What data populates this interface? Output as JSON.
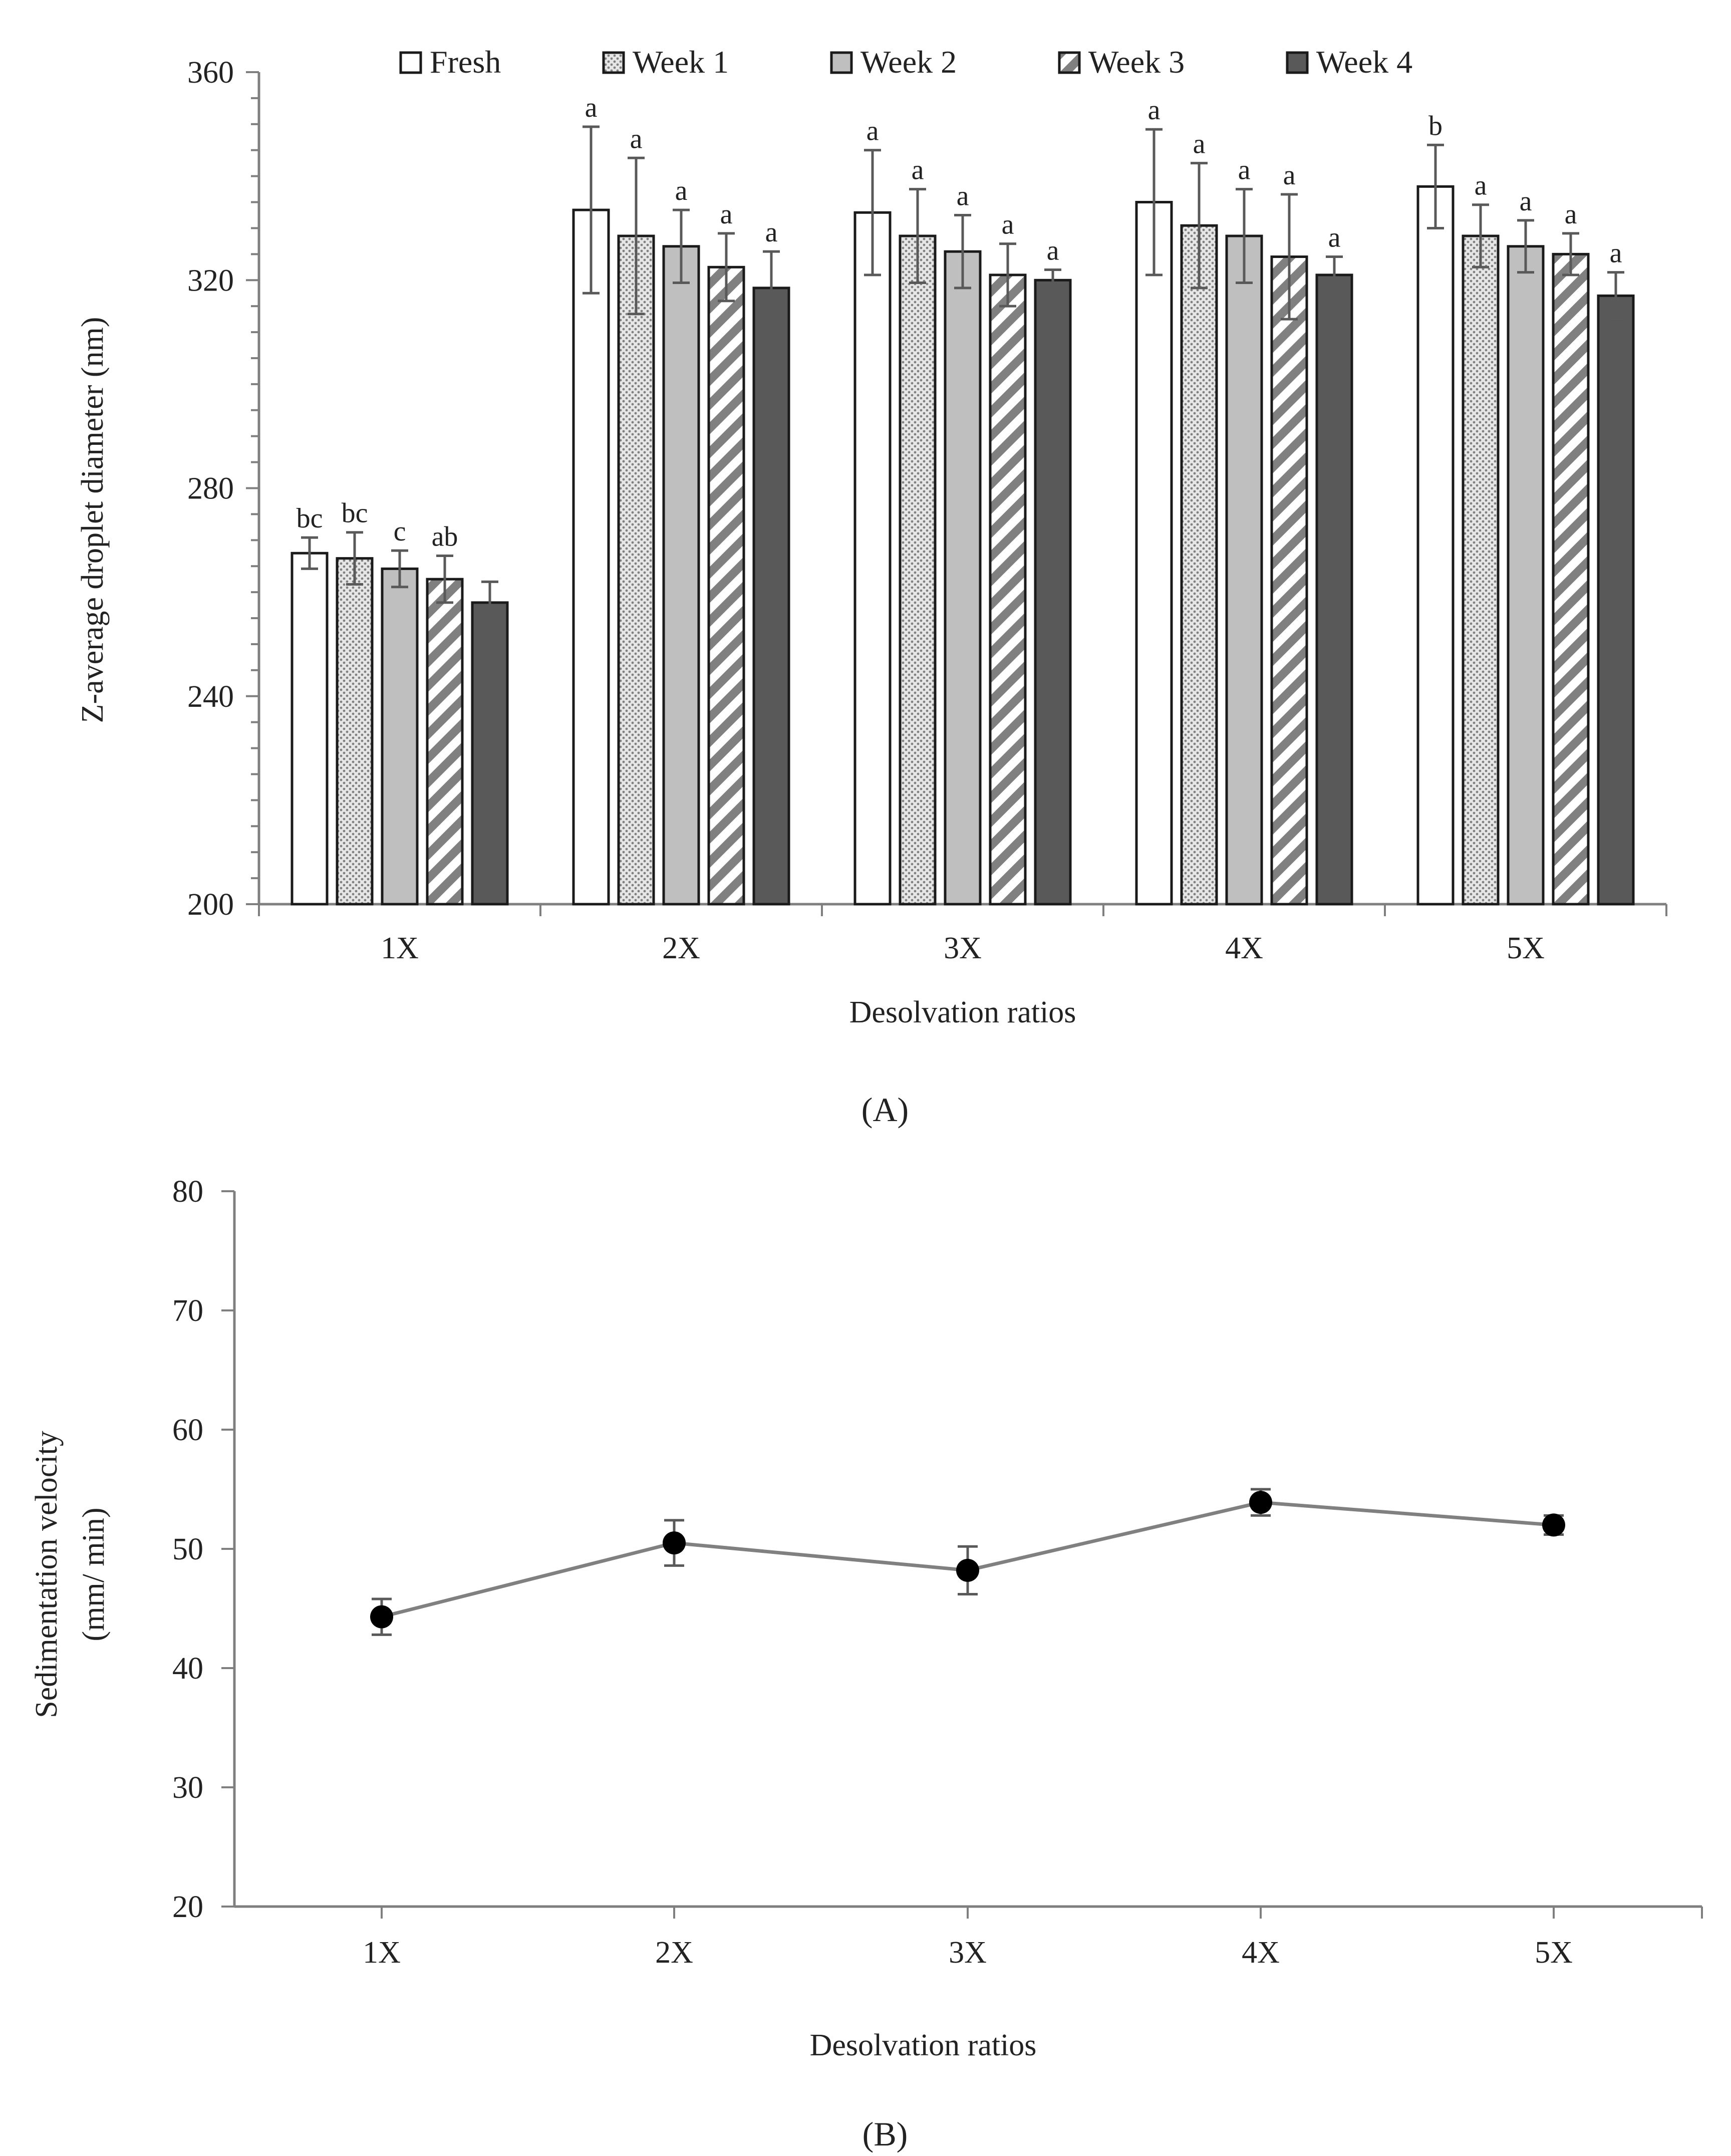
{
  "chart_data": [
    {
      "panel_label": "(A)",
      "type": "bar",
      "xlabel": "Desolvation ratios",
      "ylabel": "Z-average droplet diameter (nm)",
      "ylim": [
        200,
        360
      ],
      "yticks": [
        200,
        240,
        280,
        320,
        360
      ],
      "categories": [
        "1X",
        "2X",
        "3X",
        "4X",
        "5X"
      ],
      "legend_position": "top",
      "series": [
        {
          "name": "Fresh",
          "pattern": "white",
          "values": [
            267.5,
            333.5,
            333,
            335,
            338
          ],
          "errors": [
            3,
            16,
            12,
            14,
            8
          ],
          "labels": [
            "bc",
            "a",
            "a",
            "a",
            "b"
          ]
        },
        {
          "name": "Week 1",
          "pattern": "dots",
          "values": [
            266.5,
            328.5,
            328.5,
            330.5,
            328.5
          ],
          "errors": [
            5,
            15,
            9,
            12,
            6
          ],
          "labels": [
            "bc",
            "a",
            "a",
            "a",
            "a"
          ]
        },
        {
          "name": "Week 2",
          "pattern": "light-gray",
          "values": [
            264.5,
            326.5,
            325.5,
            328.5,
            326.5
          ],
          "errors": [
            3.5,
            7,
            7,
            9,
            5
          ],
          "labels": [
            "c",
            "a",
            "a",
            "a",
            "a"
          ]
        },
        {
          "name": "Week 3",
          "pattern": "diagonal-stripes",
          "values": [
            262.5,
            322.5,
            321,
            324.5,
            325
          ],
          "errors": [
            4.5,
            6.5,
            6,
            12,
            4
          ],
          "labels": [
            "ab",
            "a",
            "a",
            "a",
            "a"
          ]
        },
        {
          "name": "Week 4",
          "pattern": "dark-gray",
          "values": [
            258,
            318.5,
            320,
            321,
            317
          ],
          "errors": [
            4,
            7,
            2,
            3.5,
            4.5
          ],
          "labels": [
            "",
            "a",
            "a",
            "a",
            "a"
          ]
        }
      ]
    },
    {
      "panel_label": "(B)",
      "type": "line",
      "xlabel": "Desolvation ratios",
      "ylabel_lines": [
        "Sedimentation velocity",
        "(mm/ min)"
      ],
      "ylim": [
        20,
        80
      ],
      "yticks": [
        20,
        30,
        40,
        50,
        60,
        70,
        80
      ],
      "categories": [
        "1X",
        "2X",
        "3X",
        "4X",
        "5X"
      ],
      "series": [
        {
          "name": "Sedimentation velocity",
          "values": [
            44.3,
            50.5,
            48.2,
            53.9,
            52.0
          ],
          "errors": [
            1.5,
            1.9,
            2.0,
            1.1,
            0.8
          ]
        }
      ]
    }
  ],
  "colors": {
    "axis": "#7f7f7f",
    "text": "#222222",
    "bar_outline": "#1a1a1a",
    "fresh": "#ffffff",
    "week1_bg": "#e6e6e6",
    "week1_dot": "#808080",
    "week2": "#bfbfbf",
    "week3_stripe": "#808080",
    "week4": "#595959",
    "errorbar": "#595959",
    "line": "#808080",
    "marker": "#000000"
  }
}
